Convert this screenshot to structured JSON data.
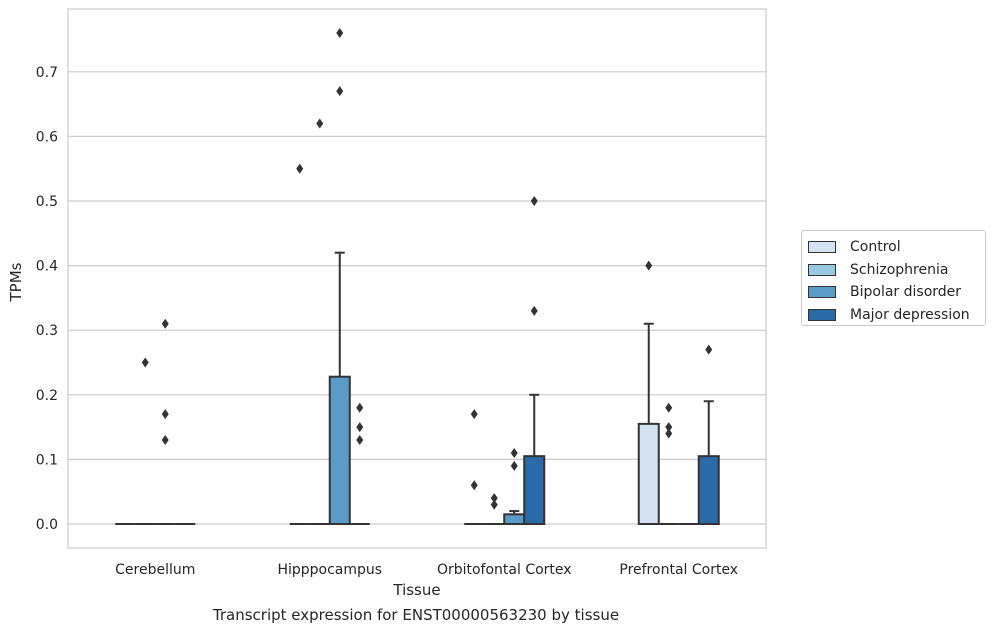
{
  "chart_data": {
    "type": "box",
    "title": "",
    "caption": "Transcript expression for ENST00000563230 by tissue",
    "xlabel": "Tissue",
    "ylabel": "TPMs",
    "ylim": [
      -0.035,
      0.8
    ],
    "yticks": [
      "0.0",
      "0.1",
      "0.2",
      "0.3",
      "0.4",
      "0.5",
      "0.6",
      "0.7"
    ],
    "grid": "horizontal",
    "legend_position": "right",
    "categories": [
      "Cerebellum",
      "Hipppocampus",
      "Orbitofontal Cortex",
      "Prefrontal Cortex"
    ],
    "series": [
      {
        "name": "Control",
        "color": "#d3e3f2",
        "boxes": [
          {
            "q1": 0,
            "median": 0,
            "q3": 0,
            "whisker_low": 0,
            "whisker_high": 0,
            "outliers": []
          },
          {
            "q1": 0,
            "median": 0,
            "q3": 0,
            "whisker_low": 0,
            "whisker_high": 0,
            "outliers": [
              0.55
            ]
          },
          {
            "q1": 0,
            "median": 0,
            "q3": 0,
            "whisker_low": 0,
            "whisker_high": 0,
            "outliers": [
              0.06,
              0.17
            ]
          },
          {
            "q1": 0,
            "median": 0,
            "q3": 0.155,
            "whisker_low": 0,
            "whisker_high": 0.31,
            "outliers": [
              0.4
            ]
          }
        ]
      },
      {
        "name": "Schizophrenia",
        "color": "#9ac8e0",
        "boxes": [
          {
            "q1": 0,
            "median": 0,
            "q3": 0,
            "whisker_low": 0,
            "whisker_high": 0,
            "outliers": [
              0.25
            ]
          },
          {
            "q1": 0,
            "median": 0,
            "q3": 0,
            "whisker_low": 0,
            "whisker_high": 0,
            "outliers": [
              0.62
            ]
          },
          {
            "q1": 0,
            "median": 0,
            "q3": 0,
            "whisker_low": 0,
            "whisker_high": 0,
            "outliers": [
              0.03,
              0.04
            ]
          },
          {
            "q1": 0,
            "median": 0,
            "q3": 0,
            "whisker_low": 0,
            "whisker_high": 0,
            "outliers": [
              0.14,
              0.15,
              0.18
            ]
          }
        ]
      },
      {
        "name": "Bipolar disorder",
        "color": "#5a9bc8",
        "boxes": [
          {
            "q1": 0,
            "median": 0,
            "q3": 0,
            "whisker_low": 0,
            "whisker_high": 0,
            "outliers": [
              0.13,
              0.17,
              0.31
            ]
          },
          {
            "q1": 0,
            "median": 0,
            "q3": 0.228,
            "whisker_low": 0,
            "whisker_high": 0.42,
            "outliers": [
              0.67,
              0.76
            ]
          },
          {
            "q1": 0,
            "median": 0,
            "q3": 0.015,
            "whisker_low": 0,
            "whisker_high": 0.02,
            "outliers": [
              0.09,
              0.11
            ]
          },
          {
            "q1": 0,
            "median": 0,
            "q3": 0,
            "whisker_low": 0,
            "whisker_high": 0,
            "outliers": []
          }
        ]
      },
      {
        "name": "Major depression",
        "color": "#2a6aa8",
        "boxes": [
          {
            "q1": 0,
            "median": 0,
            "q3": 0,
            "whisker_low": 0,
            "whisker_high": 0,
            "outliers": []
          },
          {
            "q1": 0,
            "median": 0,
            "q3": 0,
            "whisker_low": 0,
            "whisker_high": 0,
            "outliers": [
              0.13,
              0.15,
              0.18
            ]
          },
          {
            "q1": 0,
            "median": 0,
            "q3": 0.105,
            "whisker_low": 0,
            "whisker_high": 0.2,
            "outliers": [
              0.33,
              0.5
            ]
          },
          {
            "q1": 0,
            "median": 0,
            "q3": 0.105,
            "whisker_low": 0,
            "whisker_high": 0.19,
            "outliers": [
              0.27
            ]
          }
        ]
      }
    ]
  }
}
